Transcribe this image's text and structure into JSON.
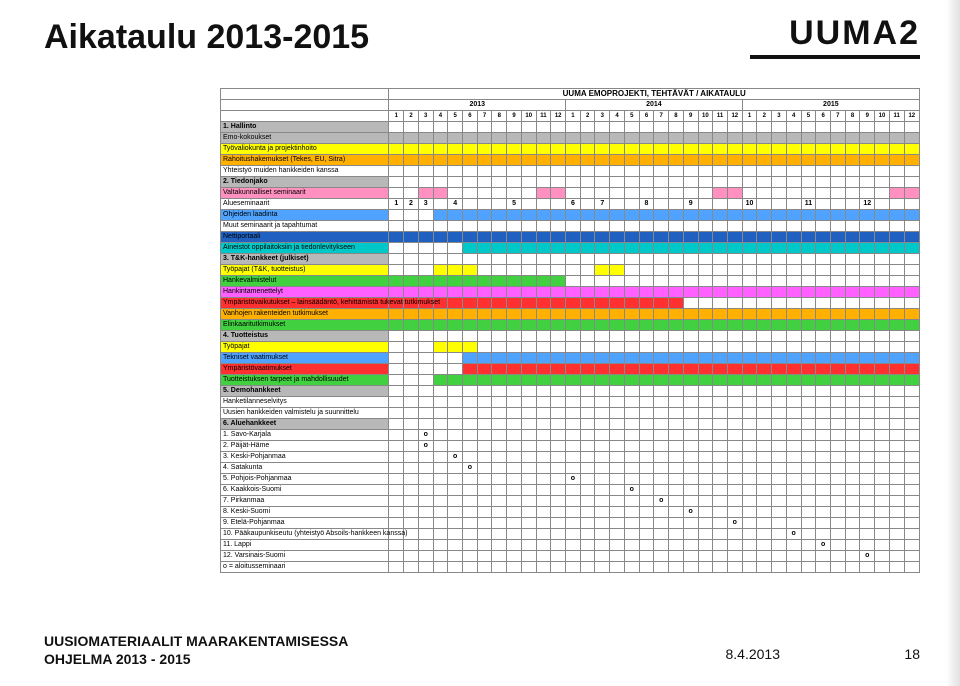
{
  "title": "Aikataulu 2013-2015",
  "logo_text": "UUMA2",
  "footer_line1": "UUSIOMATERIAALIT MAARAKENTAMISESSA",
  "footer_line2": "OHJELMA 2013 - 2015",
  "date": "8.4.2013",
  "page_num": "18",
  "project_title": "UUMA EMOPROJEKTI, TEHTÄVÄT / AIKATAULU",
  "years": [
    "2013",
    "2014",
    "2015"
  ],
  "months": [
    "1",
    "2",
    "3",
    "4",
    "5",
    "6",
    "7",
    "8",
    "9",
    "10",
    "11",
    "12",
    "1",
    "2",
    "3",
    "4",
    "5",
    "6",
    "7",
    "8",
    "9",
    "10",
    "11",
    "12",
    "1",
    "2",
    "3",
    "4",
    "5",
    "6",
    "7",
    "8",
    "9",
    "10",
    "11",
    "12"
  ],
  "colors": {
    "yellow": "#ffff00",
    "orange": "#ffb000",
    "red": "#ff3030",
    "blue": "#4fa3ff",
    "darkblue": "#2060c0",
    "cyan": "#00c8c8",
    "magenta": "#ff60ff",
    "green": "#40d040",
    "gray": "#b8b8b8",
    "pink": "#ff90c0",
    "white": "#ffffff"
  },
  "rows": [
    {
      "label": "1. Hallinto",
      "bold": true,
      "fill": "#b8b8b8",
      "bars": []
    },
    {
      "label": "Emo-kokoukset",
      "fill": "#b8b8b8",
      "bars": [
        {
          "s": 1,
          "e": 36,
          "c": "#b8b8b8"
        }
      ]
    },
    {
      "label": "Työvaliokunta ja projektinhoito",
      "fill": "#ffff00",
      "bars": [
        {
          "s": 1,
          "e": 36,
          "c": "#ffff00"
        }
      ]
    },
    {
      "label": "Rahoitushakemukset (Tekes, EU, Sitra)",
      "fill": "#ffb000",
      "bars": [
        {
          "s": 1,
          "e": 36,
          "c": "#ffb000"
        }
      ]
    },
    {
      "label": "Yhteistyö muiden hankkeiden kanssa",
      "fill": "#ffffff",
      "bars": []
    },
    {
      "label": "2. Tiedonjako",
      "bold": true,
      "fill": "#b8b8b8",
      "bars": []
    },
    {
      "label": "Valtakunnalliset seminaarit",
      "fill": "#ff90c0",
      "bars": [
        {
          "s": 3,
          "e": 4,
          "c": "#ff90c0"
        },
        {
          "s": 11,
          "e": 12,
          "c": "#ff90c0"
        },
        {
          "s": 23,
          "e": 24,
          "c": "#ff90c0"
        },
        {
          "s": 35,
          "e": 36,
          "c": "#ff90c0"
        }
      ]
    },
    {
      "label": "Alueseminaarit",
      "fill": "#ffffff",
      "nums": {
        "1": "1",
        "2": "2",
        "3": "3",
        "5": "4",
        "9": "5",
        "13": "6",
        "15": "7",
        "18": "8",
        "21": "9",
        "25": "10",
        "29": "11",
        "33": "12"
      }
    },
    {
      "label": "Ohjeiden laadinta",
      "fill": "#4fa3ff",
      "bars": [
        {
          "s": 4,
          "e": 36,
          "c": "#4fa3ff"
        }
      ]
    },
    {
      "label": "Muut seminaarit ja tapahtumat",
      "fill": "#ffffff",
      "bars": []
    },
    {
      "label": "Nettiportaali",
      "fill": "#2060c0",
      "bars": [
        {
          "s": 1,
          "e": 36,
          "c": "#2060c0"
        }
      ]
    },
    {
      "label": "Aineistot oppilaitoksiin ja tiedonlevitykseen",
      "fill": "#00c8c8",
      "bars": [
        {
          "s": 6,
          "e": 36,
          "c": "#00c8c8"
        }
      ]
    },
    {
      "label": "3. T&K-hankkeet (julkiset)",
      "bold": true,
      "fill": "#b8b8b8",
      "bars": []
    },
    {
      "label": "Työpajat (T&K, tuotteistus)",
      "fill": "#ffff00",
      "bars": [
        {
          "s": 4,
          "e": 6,
          "c": "#ffff00"
        },
        {
          "s": 15,
          "e": 16,
          "c": "#ffff00"
        }
      ]
    },
    {
      "label": "Hankevalmistelut",
      "fill": "#40d040",
      "bars": [
        {
          "s": 1,
          "e": 12,
          "c": "#40d040"
        }
      ]
    },
    {
      "label": "Hankintamenettelyt",
      "fill": "#ff60ff",
      "bars": [
        {
          "s": 1,
          "e": 36,
          "c": "#ff60ff"
        }
      ]
    },
    {
      "label": "Ympäristövaikutukset – lainsäädäntö, kehittämistä tukevat tutkimukset",
      "fill": "#ff3030",
      "bars": [
        {
          "s": 1,
          "e": 20,
          "c": "#ff3030"
        }
      ]
    },
    {
      "label": "Vanhojen rakenteiden tutkimukset",
      "fill": "#ffb000",
      "bars": [
        {
          "s": 1,
          "e": 36,
          "c": "#ffb000"
        }
      ]
    },
    {
      "label": "Elinkaaritutkimukset",
      "fill": "#40d040",
      "bars": [
        {
          "s": 1,
          "e": 36,
          "c": "#40d040"
        }
      ]
    },
    {
      "label": "4. Tuotteistus",
      "bold": true,
      "fill": "#b8b8b8",
      "bars": []
    },
    {
      "label": "Työpajat",
      "fill": "#ffff00",
      "bars": [
        {
          "s": 4,
          "e": 6,
          "c": "#ffff00"
        }
      ]
    },
    {
      "label": "Tekniset vaatimukset",
      "fill": "#4fa3ff",
      "bars": [
        {
          "s": 6,
          "e": 36,
          "c": "#4fa3ff"
        }
      ]
    },
    {
      "label": "Ympäristövaatimukset",
      "fill": "#ff3030",
      "bars": [
        {
          "s": 6,
          "e": 36,
          "c": "#ff3030"
        }
      ]
    },
    {
      "label": "Tuotteistuksen tarpeet ja mahdollisuudet",
      "fill": "#40d040",
      "bars": [
        {
          "s": 4,
          "e": 36,
          "c": "#40d040"
        }
      ]
    },
    {
      "label": "5. Demohankkeet",
      "bold": true,
      "fill": "#b8b8b8",
      "bars": []
    },
    {
      "label": "Hanketilanneselvitys",
      "fill": "#ffffff",
      "bars": []
    },
    {
      "label": "Uusien hankkeiden valmistelu ja suunnittelu",
      "fill": "#ffffff",
      "bars": []
    },
    {
      "label": "6. Aluehankkeet",
      "bold": true,
      "fill": "#b8b8b8",
      "bars": []
    },
    {
      "label": "1. Savo-Karjala",
      "fill": "#ffffff",
      "o": 3
    },
    {
      "label": "2. Päijät-Häme",
      "fill": "#ffffff",
      "o": 3
    },
    {
      "label": "3. Keski-Pohjanmaa",
      "fill": "#ffffff",
      "o": 5
    },
    {
      "label": "4. Satakunta",
      "fill": "#ffffff",
      "o": 6
    },
    {
      "label": "5. Pohjois-Pohjanmaa",
      "fill": "#ffffff",
      "o": 13
    },
    {
      "label": "6. Kaakkois-Suomi",
      "fill": "#ffffff",
      "o": 17
    },
    {
      "label": "7. Pirkanmaa",
      "fill": "#ffffff",
      "o": 19
    },
    {
      "label": "8. Keski-Suomi",
      "fill": "#ffffff",
      "o": 21
    },
    {
      "label": "9. Etelä-Pohjanmaa",
      "fill": "#ffffff",
      "o": 24
    },
    {
      "label": "10. Pääkaupunkiseutu (yhteistyö Absoils-hankkeen kanssa)",
      "fill": "#ffffff",
      "o": 28
    },
    {
      "label": "11. Lappi",
      "fill": "#ffffff",
      "o": 30
    },
    {
      "label": "12. Varsinais-Suomi",
      "fill": "#ffffff",
      "o": 33
    },
    {
      "label": "o = aloitusseminaari",
      "fill": "#ffffff",
      "bars": []
    }
  ]
}
